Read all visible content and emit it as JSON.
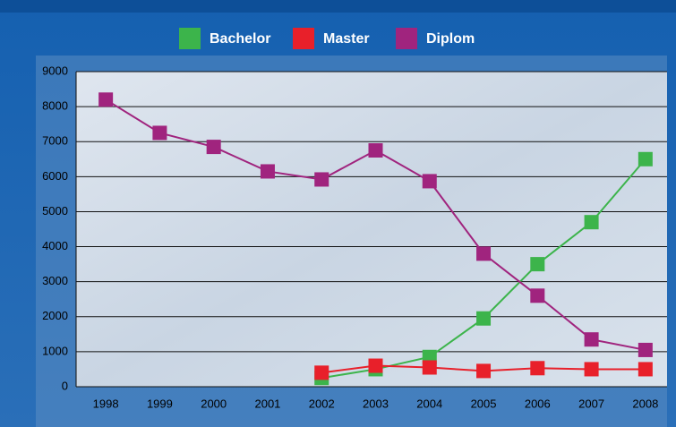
{
  "chart_data": {
    "type": "line",
    "categories": [
      "1998",
      "1999",
      "2000",
      "2001",
      "2002",
      "2003",
      "2004",
      "2005",
      "2006",
      "2007",
      "2008"
    ],
    "series": [
      {
        "name": "Bachelor",
        "color": "#3cb44b",
        "values": [
          null,
          null,
          null,
          null,
          250,
          500,
          850,
          1950,
          3500,
          4700,
          6500
        ]
      },
      {
        "name": "Master",
        "color": "#e8202a",
        "values": [
          null,
          null,
          null,
          null,
          400,
          600,
          550,
          450,
          530,
          500,
          500
        ]
      },
      {
        "name": "Diplom",
        "color": "#a0247e",
        "values": [
          8200,
          7250,
          6850,
          6150,
          5920,
          6750,
          5870,
          3800,
          2600,
          1350,
          1050
        ]
      }
    ],
    "ylim": [
      0,
      9000
    ],
    "yticks": [
      0,
      1000,
      2000,
      3000,
      4000,
      5000,
      6000,
      7000,
      8000,
      9000
    ],
    "grid": true
  }
}
